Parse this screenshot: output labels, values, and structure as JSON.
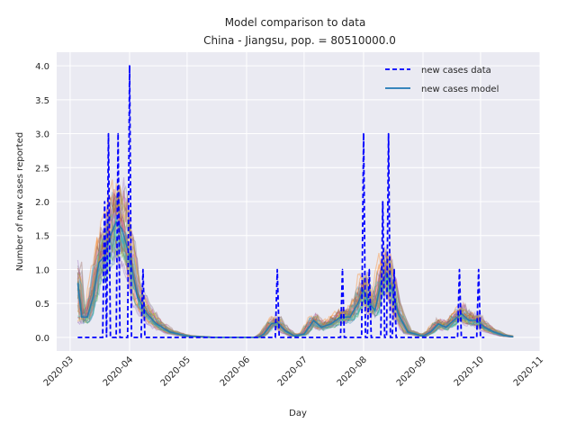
{
  "chart_data": {
    "type": "line",
    "title": "Model comparison to data",
    "subtitle": "China - Jiangsu, pop. = 80510000.0",
    "xlabel": "Day",
    "ylabel": "Number of new cases reported",
    "x_range": [
      "2020-02-23",
      "2020-11-01"
    ],
    "ylim": [
      -0.2,
      4.2
    ],
    "x_ticks": [
      "2020-03",
      "2020-04",
      "2020-05",
      "2020-06",
      "2020-07",
      "2020-08",
      "2020-09",
      "2020-10",
      "2020-11"
    ],
    "y_ticks": [
      "0.0",
      "0.5",
      "1.0",
      "1.5",
      "2.0",
      "2.5",
      "3.0",
      "3.5",
      "4.0"
    ],
    "grid": true,
    "legend_position": "top-right",
    "legend": [
      {
        "label": "new cases data",
        "style": "dashed",
        "color": "#0000ff"
      },
      {
        "label": "new cases model",
        "style": "solid",
        "color": "#1f77b4"
      }
    ],
    "data_series": {
      "name": "new cases data",
      "color": "#0000ff",
      "spikes": [
        {
          "date": "2020-03-19",
          "value": 2
        },
        {
          "date": "2020-03-21",
          "value": 3
        },
        {
          "date": "2020-03-26",
          "value": 3
        },
        {
          "date": "2020-04-01",
          "value": 4
        },
        {
          "date": "2020-04-08",
          "value": 1
        },
        {
          "date": "2020-06-17",
          "value": 1
        },
        {
          "date": "2020-07-21",
          "value": 1
        },
        {
          "date": "2020-08-01",
          "value": 3
        },
        {
          "date": "2020-08-04",
          "value": 1
        },
        {
          "date": "2020-08-11",
          "value": 2
        },
        {
          "date": "2020-08-14",
          "value": 3
        },
        {
          "date": "2020-08-17",
          "value": 1
        },
        {
          "date": "2020-09-20",
          "value": 1
        },
        {
          "date": "2020-09-30",
          "value": 1
        }
      ],
      "start": "2020-03-05",
      "end": "2020-10-03"
    },
    "model_series": {
      "name": "new cases model",
      "color": "#1f77b4",
      "start": "2020-03-05",
      "end": "2020-10-18",
      "ensemble_colors": [
        "#1f77b4",
        "#ff7f0e",
        "#2ca02c",
        "#d62728",
        "#9467bd",
        "#8c564b",
        "#e377c2",
        "#bcbd22",
        "#17becf",
        "#7f7f7f"
      ],
      "mean_points": [
        [
          "2020-03-05",
          0.8
        ],
        [
          "2020-03-07",
          0.3
        ],
        [
          "2020-03-10",
          0.3
        ],
        [
          "2020-03-13",
          0.6
        ],
        [
          "2020-03-16",
          1.1
        ],
        [
          "2020-03-19",
          1.2
        ],
        [
          "2020-03-22",
          1.5
        ],
        [
          "2020-03-25",
          1.7
        ],
        [
          "2020-03-28",
          1.6
        ],
        [
          "2020-04-01",
          1.2
        ],
        [
          "2020-04-05",
          0.6
        ],
        [
          "2020-04-10",
          0.35
        ],
        [
          "2020-04-15",
          0.2
        ],
        [
          "2020-04-22",
          0.08
        ],
        [
          "2020-05-01",
          0.02
        ],
        [
          "2020-05-15",
          0.0
        ],
        [
          "2020-06-07",
          0.0
        ],
        [
          "2020-06-10",
          0.05
        ],
        [
          "2020-06-14",
          0.2
        ],
        [
          "2020-06-17",
          0.22
        ],
        [
          "2020-06-21",
          0.1
        ],
        [
          "2020-06-26",
          0.02
        ],
        [
          "2020-07-01",
          0.05
        ],
        [
          "2020-07-06",
          0.25
        ],
        [
          "2020-07-10",
          0.15
        ],
        [
          "2020-07-15",
          0.2
        ],
        [
          "2020-07-20",
          0.3
        ],
        [
          "2020-07-25",
          0.3
        ],
        [
          "2020-07-29",
          0.5
        ],
        [
          "2020-08-01",
          0.7
        ],
        [
          "2020-08-04",
          0.5
        ],
        [
          "2020-08-07",
          0.4
        ],
        [
          "2020-08-10",
          0.8
        ],
        [
          "2020-08-13",
          0.95
        ],
        [
          "2020-08-16",
          0.7
        ],
        [
          "2020-08-19",
          0.35
        ],
        [
          "2020-08-24",
          0.08
        ],
        [
          "2020-09-01",
          0.02
        ],
        [
          "2020-09-05",
          0.08
        ],
        [
          "2020-09-09",
          0.2
        ],
        [
          "2020-09-13",
          0.15
        ],
        [
          "2020-09-17",
          0.25
        ],
        [
          "2020-09-21",
          0.35
        ],
        [
          "2020-09-25",
          0.25
        ],
        [
          "2020-09-29",
          0.25
        ],
        [
          "2020-10-03",
          0.15
        ],
        [
          "2020-10-08",
          0.08
        ],
        [
          "2020-10-13",
          0.03
        ],
        [
          "2020-10-18",
          0.01
        ]
      ]
    }
  }
}
